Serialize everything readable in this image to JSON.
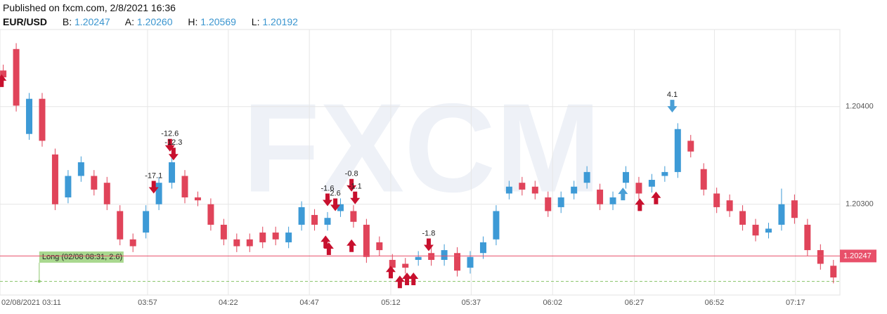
{
  "header": {
    "published": "Published on fxcm.com, 2/8/2021 16:36",
    "symbol": "EUR/USD",
    "fields": [
      {
        "label": "B:",
        "value": "1.20247"
      },
      {
        "label": "A:",
        "value": "1.20260"
      },
      {
        "label": "H:",
        "value": "1.20569"
      },
      {
        "label": "L:",
        "value": "1.20192"
      }
    ]
  },
  "chart_data": {
    "type": "candlestick",
    "watermark": "FXCM",
    "up_color": "#3d9ad6",
    "down_color": "#e0445a",
    "grid": true,
    "xlim": [
      -1,
      258
    ],
    "ylim": [
      1.20207,
      1.20479
    ],
    "xticks": [
      {
        "value": 8.7,
        "label": "02/08/2021 03:11"
      },
      {
        "value": 44.5,
        "label": "03:57"
      },
      {
        "value": 69.4,
        "label": "04:22"
      },
      {
        "value": 94.4,
        "label": "04:47"
      },
      {
        "value": 119.5,
        "label": "05:12"
      },
      {
        "value": 144.3,
        "label": "05:37"
      },
      {
        "value": 169.4,
        "label": "06:02"
      },
      {
        "value": 194.6,
        "label": "06:27"
      },
      {
        "value": 219.3,
        "label": "06:52"
      },
      {
        "value": 244.3,
        "label": "07:17"
      }
    ],
    "yticks": [
      {
        "value": 1.204,
        "label": "1.20400"
      },
      {
        "value": 1.203,
        "label": "1.20300"
      }
    ],
    "price_line": {
      "value": 1.20247,
      "label": "1.20247",
      "color": "#e8506a"
    },
    "position": {
      "label": "Long (02/08 08:31, 2.6)",
      "x": 11.1,
      "value": 1.20221,
      "color": "#8cc66d"
    },
    "x": [
      0,
      4,
      8,
      12,
      16,
      20,
      24,
      28,
      32,
      36,
      40,
      44,
      48,
      52,
      56,
      60,
      64,
      68,
      72,
      76,
      80,
      84,
      88,
      92,
      96,
      100,
      104,
      108,
      112,
      116,
      120,
      124,
      128,
      132,
      136,
      140,
      144,
      148,
      152,
      156,
      160,
      164,
      168,
      172,
      176,
      180,
      184,
      188,
      192,
      196,
      200,
      204,
      208,
      212,
      216,
      220,
      224,
      228,
      232,
      236,
      240,
      244,
      248,
      252,
      256
    ],
    "open": [
      1.20437,
      1.20459,
      1.20372,
      1.20408,
      1.20351,
      1.20307,
      1.20329,
      1.20329,
      1.20322,
      1.20293,
      1.20264,
      1.20271,
      1.203,
      1.20322,
      1.20329,
      1.20307,
      1.203,
      1.20279,
      1.20264,
      1.20264,
      1.20271,
      1.20271,
      1.20261,
      1.20279,
      1.20289,
      1.20279,
      1.20293,
      1.20293,
      1.20279,
      1.20261,
      1.20243,
      1.20239,
      1.20243,
      1.2025,
      1.20243,
      1.2025,
      1.20235,
      1.2025,
      1.20264,
      1.20311,
      1.20322,
      1.20318,
      1.20307,
      1.20297,
      1.20311,
      1.20322,
      1.20315,
      1.203,
      1.20322,
      1.20322,
      1.20318,
      1.20329,
      1.20333,
      1.20365,
      1.20336,
      1.20311,
      1.20304,
      1.20293,
      1.20279,
      1.20271,
      1.20279,
      1.20304,
      1.20279,
      1.20253,
      1.20237
    ],
    "high": [
      1.20443,
      1.20465,
      1.20414,
      1.20414,
      1.20357,
      1.20335,
      1.20349,
      1.20335,
      1.20328,
      1.20299,
      1.2027,
      1.20299,
      1.20328,
      1.20356,
      1.20335,
      1.20313,
      1.20306,
      1.20285,
      1.2027,
      1.2027,
      1.20277,
      1.20277,
      1.20277,
      1.20303,
      1.20295,
      1.20292,
      1.20306,
      1.20299,
      1.20285,
      1.20267,
      1.20249,
      1.20245,
      1.20252,
      1.20256,
      1.20259,
      1.20256,
      1.20252,
      1.20267,
      1.20299,
      1.20324,
      1.20328,
      1.20324,
      1.20313,
      1.20313,
      1.20324,
      1.20339,
      1.20321,
      1.20313,
      1.20339,
      1.20328,
      1.20331,
      1.20339,
      1.20383,
      1.20371,
      1.20342,
      1.20317,
      1.2031,
      1.20299,
      1.20285,
      1.20281,
      1.20316,
      1.2031,
      1.20285,
      1.20259,
      1.20243
    ],
    "low": [
      1.20424,
      1.20395,
      1.20366,
      1.20359,
      1.20294,
      1.20301,
      1.20323,
      1.20309,
      1.20294,
      1.20258,
      1.20251,
      1.20265,
      1.20294,
      1.20316,
      1.20301,
      1.20298,
      1.20273,
      1.20258,
      1.20251,
      1.20251,
      1.20255,
      1.20258,
      1.20255,
      1.20273,
      1.20273,
      1.20273,
      1.20287,
      1.20276,
      1.2024,
      1.20247,
      1.20229,
      1.20229,
      1.20237,
      1.20237,
      1.20237,
      1.20226,
      1.20229,
      1.20244,
      1.20258,
      1.20305,
      1.20309,
      1.20305,
      1.20287,
      1.20291,
      1.20305,
      1.20316,
      1.20294,
      1.20294,
      1.20316,
      1.20305,
      1.20312,
      1.20323,
      1.20327,
      1.20348,
      1.20309,
      1.20291,
      1.20287,
      1.20273,
      1.20262,
      1.20265,
      1.20273,
      1.2028,
      1.20247,
      1.20233,
      1.20219
    ],
    "close": [
      1.2043,
      1.20401,
      1.20408,
      1.20365,
      1.203,
      1.20329,
      1.20343,
      1.20315,
      1.203,
      1.20264,
      1.20257,
      1.20293,
      1.20322,
      1.20343,
      1.20307,
      1.20304,
      1.20279,
      1.20264,
      1.20257,
      1.20257,
      1.20261,
      1.20264,
      1.20271,
      1.20297,
      1.20279,
      1.20286,
      1.203,
      1.20282,
      1.20246,
      1.20253,
      1.20235,
      1.20235,
      1.20246,
      1.20243,
      1.20253,
      1.20232,
      1.20246,
      1.20261,
      1.20293,
      1.20318,
      1.20315,
      1.20311,
      1.20293,
      1.20307,
      1.20318,
      1.20333,
      1.203,
      1.20307,
      1.20333,
      1.20311,
      1.20325,
      1.20333,
      1.20377,
      1.20354,
      1.20315,
      1.20297,
      1.20293,
      1.20279,
      1.20268,
      1.20275,
      1.203,
      1.20286,
      1.20253,
      1.20239,
      1.20225
    ],
    "trades": [
      {
        "x": -0.5,
        "value": 1.20433,
        "direction": "up",
        "color": "#c8102e"
      },
      {
        "x": 46.4,
        "value": 1.20311,
        "direction": "down",
        "color": "#c8102e",
        "label": "-17.1"
      },
      {
        "x": 51.4,
        "value": 1.20354,
        "direction": "down",
        "color": "#c8102e",
        "label": "-12.6"
      },
      {
        "x": 52.5,
        "value": 1.20345,
        "direction": "down",
        "color": "#c8102e",
        "label": "-12.3"
      },
      {
        "x": 100,
        "value": 1.20298,
        "direction": "down",
        "color": "#c8102e",
        "label": "-1.6"
      },
      {
        "x": 102.4,
        "value": 1.20293,
        "direction": "down",
        "color": "#c8102e",
        "label": "2.6"
      },
      {
        "x": 99.4,
        "value": 1.20268,
        "direction": "up",
        "color": "#c8102e"
      },
      {
        "x": 100.4,
        "value": 1.20261,
        "direction": "up",
        "color": "#c8102e"
      },
      {
        "x": 107.4,
        "value": 1.20313,
        "direction": "down",
        "color": "#c8102e",
        "label": "-0.8"
      },
      {
        "x": 108.5,
        "value": 1.203,
        "direction": "down",
        "color": "#c8102e",
        "label": "-1.1"
      },
      {
        "x": 107.4,
        "value": 1.20264,
        "direction": "up",
        "color": "#c8102e"
      },
      {
        "x": 131.2,
        "value": 1.20252,
        "direction": "down",
        "color": "#c8102e",
        "label": "-1.8"
      },
      {
        "x": 119.5,
        "value": 1.20237,
        "direction": "up",
        "color": "#c8102e"
      },
      {
        "x": 122.3,
        "value": 1.20227,
        "direction": "up",
        "color": "#c8102e"
      },
      {
        "x": 124.5,
        "value": 1.2023,
        "direction": "up",
        "color": "#c8102e"
      },
      {
        "x": 126.5,
        "value": 1.2023,
        "direction": "up",
        "color": "#c8102e"
      },
      {
        "x": 191.1,
        "value": 1.20317,
        "direction": "up",
        "color": "#4a9fd6"
      },
      {
        "x": 196.3,
        "value": 1.20306,
        "direction": "up",
        "color": "#c8102e"
      },
      {
        "x": 201.3,
        "value": 1.20313,
        "direction": "up",
        "color": "#c8102e"
      },
      {
        "x": 206.3,
        "value": 1.20394,
        "direction": "down",
        "color": "#4a9fd6",
        "label": "4.1"
      }
    ]
  }
}
